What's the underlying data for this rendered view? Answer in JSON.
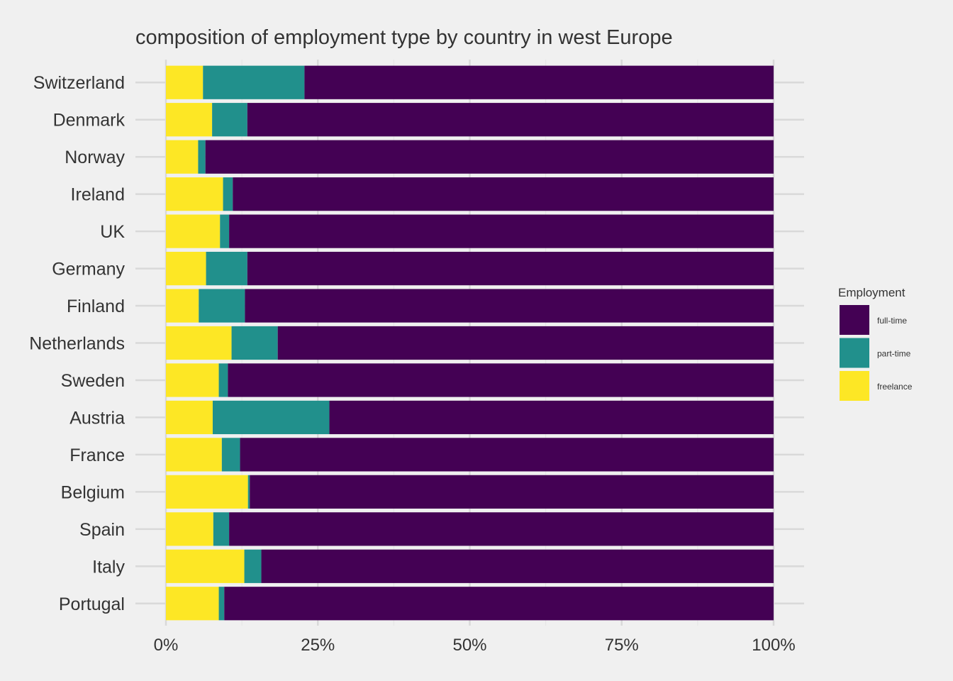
{
  "chart_data": {
    "type": "bar",
    "orientation": "horizontal",
    "stacked": "percent",
    "title": "composition of employment type by country in west Europe",
    "xlabel": "",
    "ylabel": "",
    "xlim": [
      0,
      1
    ],
    "x_ticks": [
      0,
      0.25,
      0.5,
      0.75,
      1
    ],
    "x_tick_labels": [
      "0%",
      "25%",
      "50%",
      "75%",
      "100%"
    ],
    "grid": true,
    "legend_position": "right",
    "legend_title": "Employment",
    "legend": [
      {
        "name": "full-time",
        "color": "#440154"
      },
      {
        "name": "part-time",
        "color": "#21908c"
      },
      {
        "name": "freelance",
        "color": "#fde725"
      }
    ],
    "categories": [
      "Switzerland",
      "Denmark",
      "Norway",
      "Ireland",
      "UK",
      "Germany",
      "Finland",
      "Netherlands",
      "Sweden",
      "Austria",
      "France",
      "Belgium",
      "Spain",
      "Italy",
      "Portugal"
    ],
    "series": [
      {
        "name": "freelance",
        "color": "#fde725",
        "values": [
          0.061,
          0.076,
          0.053,
          0.094,
          0.089,
          0.066,
          0.054,
          0.108,
          0.087,
          0.077,
          0.092,
          0.135,
          0.078,
          0.129,
          0.087
        ]
      },
      {
        "name": "part-time",
        "color": "#21908c",
        "values": [
          0.167,
          0.058,
          0.012,
          0.016,
          0.015,
          0.068,
          0.076,
          0.076,
          0.015,
          0.192,
          0.03,
          0.003,
          0.026,
          0.028,
          0.009
        ]
      },
      {
        "name": "full-time",
        "color": "#440154",
        "values": [
          0.772,
          0.866,
          0.935,
          0.89,
          0.896,
          0.866,
          0.87,
          0.816,
          0.898,
          0.731,
          0.878,
          0.862,
          0.896,
          0.843,
          0.904
        ]
      }
    ]
  }
}
